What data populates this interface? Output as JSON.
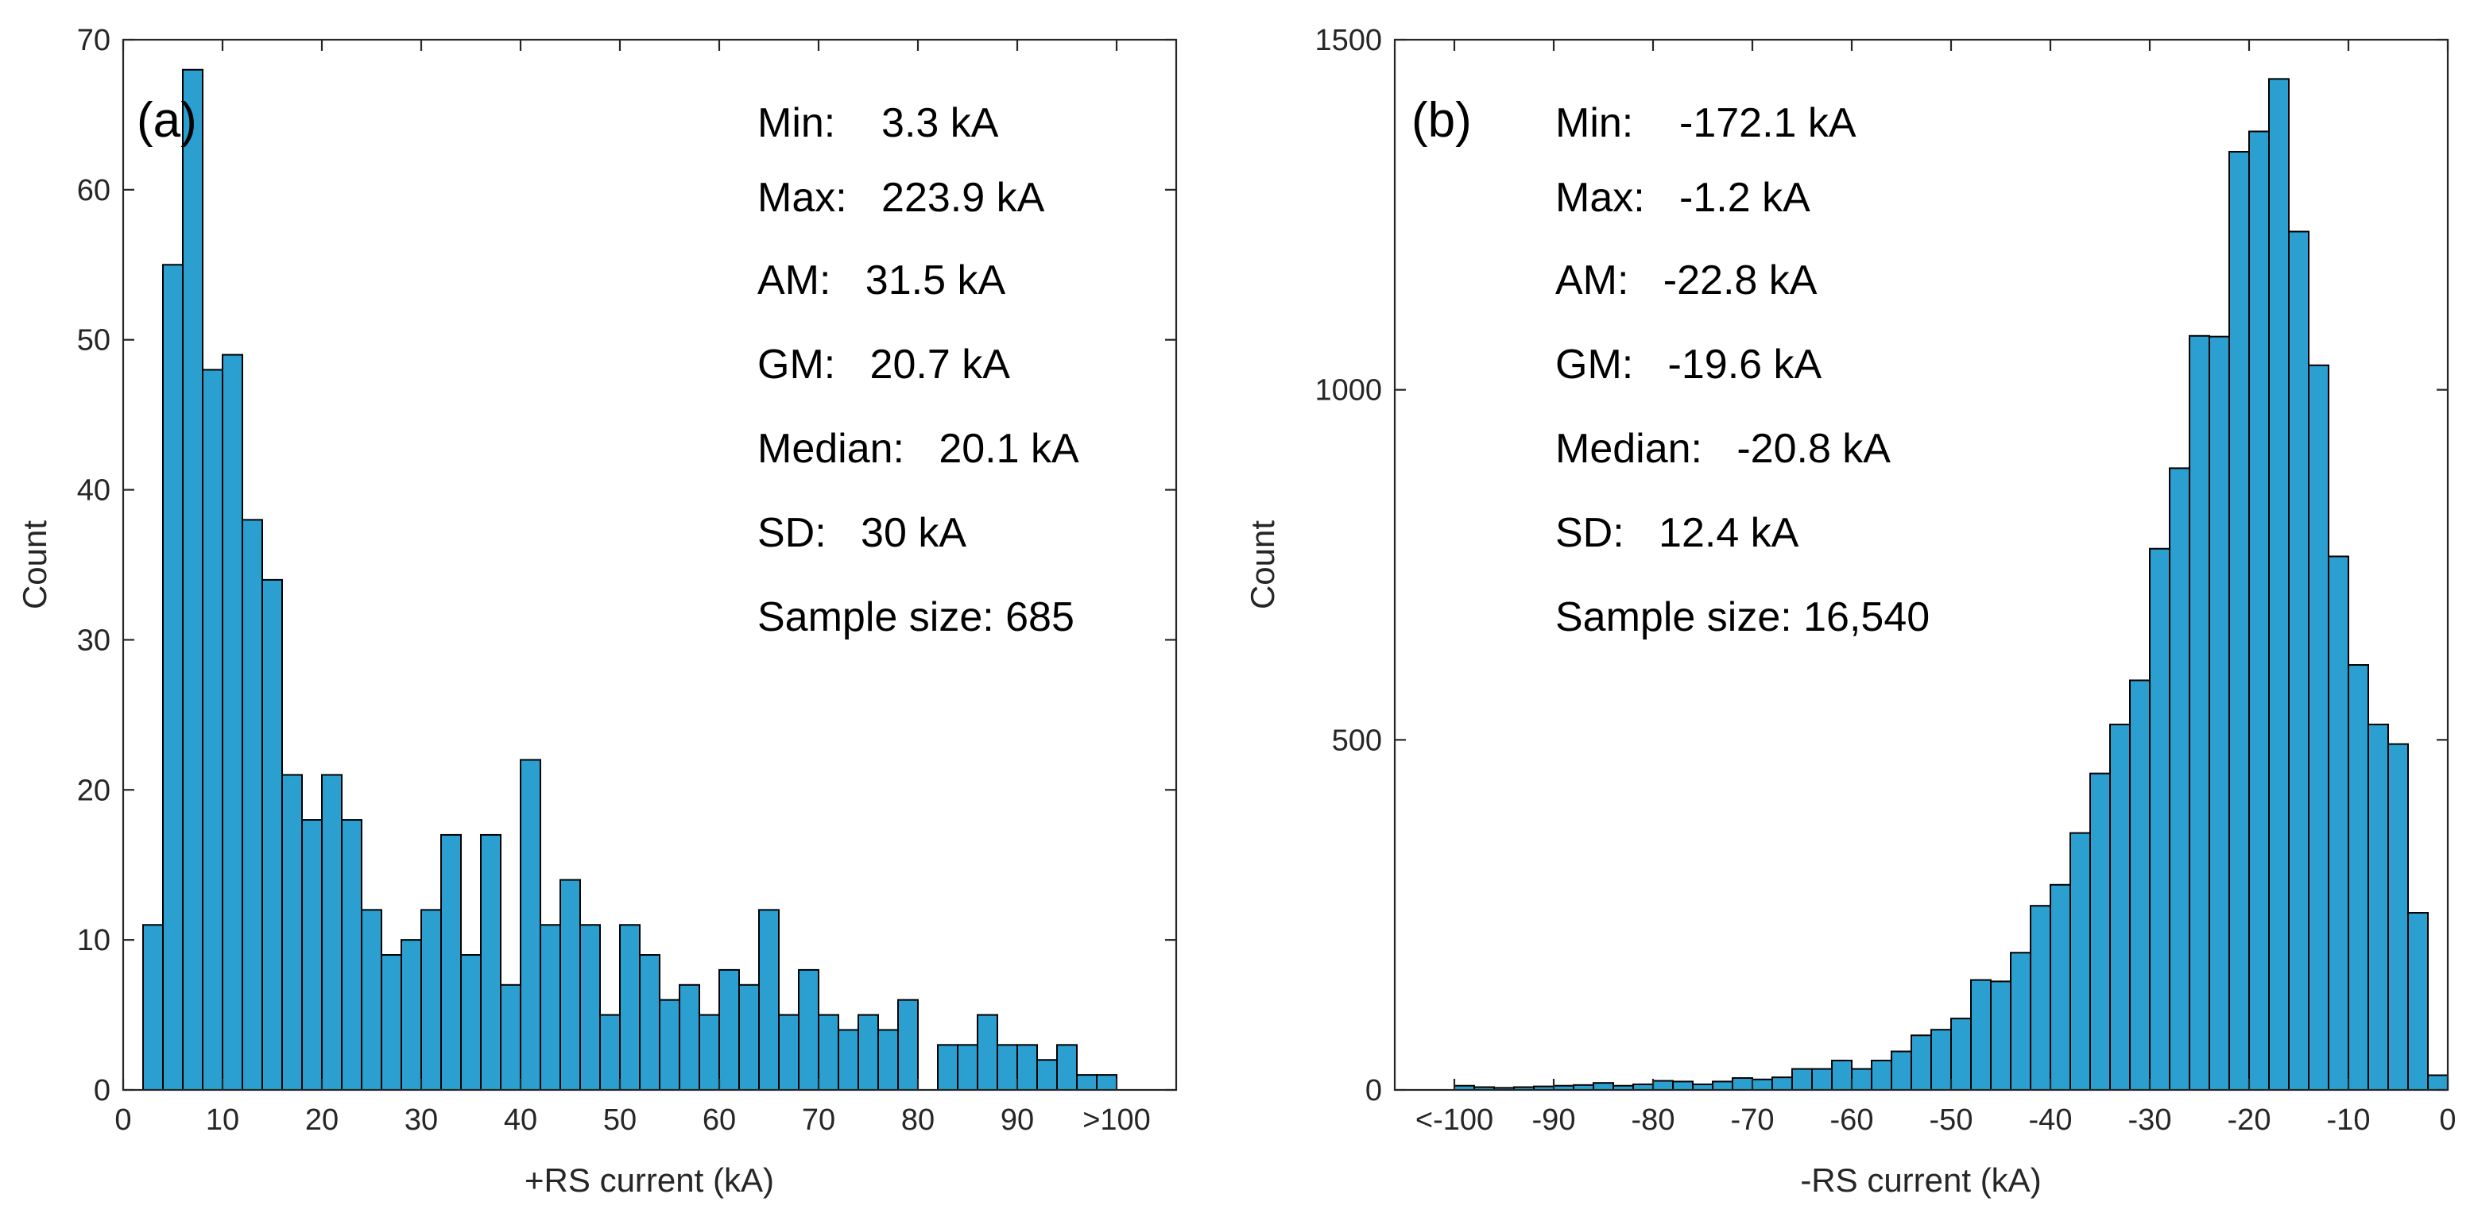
{
  "chart_data": [
    {
      "type": "bar",
      "panel_label": "(a)",
      "xlabel": "+RS current (kA)",
      "ylabel": "Count",
      "xlim": [
        0,
        106
      ],
      "ylim": [
        0,
        70
      ],
      "bin_width": 2,
      "x_ticks": [
        {
          "value": 0,
          "label": "0"
        },
        {
          "value": 10,
          "label": "10"
        },
        {
          "value": 20,
          "label": "20"
        },
        {
          "value": 30,
          "label": "30"
        },
        {
          "value": 40,
          "label": "40"
        },
        {
          "value": 50,
          "label": "50"
        },
        {
          "value": 60,
          "label": "60"
        },
        {
          "value": 70,
          "label": "70"
        },
        {
          "value": 80,
          "label": "80"
        },
        {
          "value": 90,
          "label": "90"
        },
        {
          "value": 100,
          "label": ">100"
        }
      ],
      "y_ticks": [
        {
          "value": 0,
          "label": "0"
        },
        {
          "value": 10,
          "label": "10"
        },
        {
          "value": 20,
          "label": "20"
        },
        {
          "value": 30,
          "label": "30"
        },
        {
          "value": 40,
          "label": "40"
        },
        {
          "value": 50,
          "label": "50"
        },
        {
          "value": 60,
          "label": "60"
        },
        {
          "value": 70,
          "label": "70"
        }
      ],
      "bins": [
        {
          "x0": 2,
          "x1": 4,
          "count": 11
        },
        {
          "x0": 4,
          "x1": 6,
          "count": 55
        },
        {
          "x0": 6,
          "x1": 8,
          "count": 68
        },
        {
          "x0": 8,
          "x1": 10,
          "count": 48
        },
        {
          "x0": 10,
          "x1": 12,
          "count": 49
        },
        {
          "x0": 12,
          "x1": 14,
          "count": 38
        },
        {
          "x0": 14,
          "x1": 16,
          "count": 34
        },
        {
          "x0": 16,
          "x1": 18,
          "count": 21
        },
        {
          "x0": 18,
          "x1": 20,
          "count": 18
        },
        {
          "x0": 20,
          "x1": 22,
          "count": 21
        },
        {
          "x0": 22,
          "x1": 24,
          "count": 18
        },
        {
          "x0": 24,
          "x1": 26,
          "count": 12
        },
        {
          "x0": 26,
          "x1": 28,
          "count": 9
        },
        {
          "x0": 28,
          "x1": 30,
          "count": 10
        },
        {
          "x0": 30,
          "x1": 32,
          "count": 12
        },
        {
          "x0": 32,
          "x1": 34,
          "count": 17
        },
        {
          "x0": 34,
          "x1": 36,
          "count": 9
        },
        {
          "x0": 36,
          "x1": 38,
          "count": 17
        },
        {
          "x0": 38,
          "x1": 40,
          "count": 7
        },
        {
          "x0": 40,
          "x1": 42,
          "count": 22
        },
        {
          "x0": 42,
          "x1": 44,
          "count": 11
        },
        {
          "x0": 44,
          "x1": 46,
          "count": 14
        },
        {
          "x0": 46,
          "x1": 48,
          "count": 11
        },
        {
          "x0": 48,
          "x1": 50,
          "count": 5
        },
        {
          "x0": 50,
          "x1": 52,
          "count": 11
        },
        {
          "x0": 52,
          "x1": 54,
          "count": 9
        },
        {
          "x0": 54,
          "x1": 56,
          "count": 6
        },
        {
          "x0": 56,
          "x1": 58,
          "count": 7
        },
        {
          "x0": 58,
          "x1": 60,
          "count": 5
        },
        {
          "x0": 60,
          "x1": 62,
          "count": 8
        },
        {
          "x0": 62,
          "x1": 64,
          "count": 7
        },
        {
          "x0": 64,
          "x1": 66,
          "count": 12
        },
        {
          "x0": 66,
          "x1": 68,
          "count": 5
        },
        {
          "x0": 68,
          "x1": 70,
          "count": 8
        },
        {
          "x0": 70,
          "x1": 72,
          "count": 5
        },
        {
          "x0": 72,
          "x1": 74,
          "count": 4
        },
        {
          "x0": 74,
          "x1": 76,
          "count": 5
        },
        {
          "x0": 76,
          "x1": 78,
          "count": 4
        },
        {
          "x0": 78,
          "x1": 80,
          "count": 6
        },
        {
          "x0": 82,
          "x1": 84,
          "count": 3
        },
        {
          "x0": 84,
          "x1": 86,
          "count": 3
        },
        {
          "x0": 86,
          "x1": 88,
          "count": 5
        },
        {
          "x0": 88,
          "x1": 90,
          "count": 3
        },
        {
          "x0": 90,
          "x1": 92,
          "count": 3
        },
        {
          "x0": 92,
          "x1": 94,
          "count": 2
        },
        {
          "x0": 94,
          "x1": 96,
          "count": 3
        },
        {
          "x0": 96,
          "x1": 98,
          "count": 1
        },
        {
          "x0": 98,
          "x1": 100,
          "count": 1
        }
      ],
      "stats": {
        "min": "Min:    3.3 kA",
        "max": "Max:   223.9 kA",
        "am": "AM:   31.5 kA",
        "gm": "GM:   20.7 kA",
        "median": "Median:   20.1 kA",
        "sd": "SD:   30 kA",
        "sample_size": "Sample size: 685"
      },
      "bar_color": "#2a9fd0"
    },
    {
      "type": "bar",
      "panel_label": "(b)",
      "xlabel": "-RS current (kA)",
      "ylabel": "Count",
      "xlim": [
        -106,
        0
      ],
      "ylim": [
        0,
        1500
      ],
      "bin_width": 2,
      "x_ticks": [
        {
          "value": -100,
          "label": "<-100"
        },
        {
          "value": -90,
          "label": "-90"
        },
        {
          "value": -80,
          "label": "-80"
        },
        {
          "value": -70,
          "label": "-70"
        },
        {
          "value": -60,
          "label": "-60"
        },
        {
          "value": -50,
          "label": "-50"
        },
        {
          "value": -40,
          "label": "-40"
        },
        {
          "value": -30,
          "label": "-30"
        },
        {
          "value": -20,
          "label": "-20"
        },
        {
          "value": -10,
          "label": "-10"
        },
        {
          "value": 0,
          "label": "0"
        }
      ],
      "y_ticks": [
        {
          "value": 0,
          "label": "0"
        },
        {
          "value": 500,
          "label": "500"
        },
        {
          "value": 1000,
          "label": "1000"
        },
        {
          "value": 1500,
          "label": "1500"
        }
      ],
      "bins": [
        {
          "x0": -100,
          "x1": -98,
          "count": 6
        },
        {
          "x0": -98,
          "x1": -96,
          "count": 4
        },
        {
          "x0": -96,
          "x1": -94,
          "count": 3
        },
        {
          "x0": -94,
          "x1": -92,
          "count": 4
        },
        {
          "x0": -92,
          "x1": -90,
          "count": 5
        },
        {
          "x0": -90,
          "x1": -88,
          "count": 6
        },
        {
          "x0": -88,
          "x1": -86,
          "count": 7
        },
        {
          "x0": -86,
          "x1": -84,
          "count": 10
        },
        {
          "x0": -84,
          "x1": -82,
          "count": 6
        },
        {
          "x0": -82,
          "x1": -80,
          "count": 8
        },
        {
          "x0": -80,
          "x1": -78,
          "count": 13
        },
        {
          "x0": -78,
          "x1": -76,
          "count": 12
        },
        {
          "x0": -76,
          "x1": -74,
          "count": 8
        },
        {
          "x0": -74,
          "x1": -72,
          "count": 12
        },
        {
          "x0": -72,
          "x1": -70,
          "count": 17
        },
        {
          "x0": -70,
          "x1": -68,
          "count": 15
        },
        {
          "x0": -68,
          "x1": -66,
          "count": 18
        },
        {
          "x0": -66,
          "x1": -64,
          "count": 30
        },
        {
          "x0": -64,
          "x1": -62,
          "count": 30
        },
        {
          "x0": -62,
          "x1": -60,
          "count": 42
        },
        {
          "x0": -60,
          "x1": -58,
          "count": 30
        },
        {
          "x0": -58,
          "x1": -56,
          "count": 42
        },
        {
          "x0": -56,
          "x1": -54,
          "count": 55
        },
        {
          "x0": -54,
          "x1": -52,
          "count": 78
        },
        {
          "x0": -52,
          "x1": -50,
          "count": 86
        },
        {
          "x0": -50,
          "x1": -48,
          "count": 102
        },
        {
          "x0": -48,
          "x1": -46,
          "count": 157
        },
        {
          "x0": -46,
          "x1": -44,
          "count": 155
        },
        {
          "x0": -44,
          "x1": -42,
          "count": 196
        },
        {
          "x0": -42,
          "x1": -40,
          "count": 263
        },
        {
          "x0": -40,
          "x1": -38,
          "count": 293
        },
        {
          "x0": -38,
          "x1": -36,
          "count": 367
        },
        {
          "x0": -36,
          "x1": -34,
          "count": 452
        },
        {
          "x0": -34,
          "x1": -32,
          "count": 522
        },
        {
          "x0": -32,
          "x1": -30,
          "count": 585
        },
        {
          "x0": -30,
          "x1": -28,
          "count": 773
        },
        {
          "x0": -28,
          "x1": -26,
          "count": 888
        },
        {
          "x0": -26,
          "x1": -24,
          "count": 1077
        },
        {
          "x0": -24,
          "x1": -22,
          "count": 1076
        },
        {
          "x0": -22,
          "x1": -20,
          "count": 1340
        },
        {
          "x0": -20,
          "x1": -18,
          "count": 1369
        },
        {
          "x0": -18,
          "x1": -16,
          "count": 1444
        },
        {
          "x0": -16,
          "x1": -14,
          "count": 1226
        },
        {
          "x0": -14,
          "x1": -12,
          "count": 1035
        },
        {
          "x0": -12,
          "x1": -10,
          "count": 762
        },
        {
          "x0": -10,
          "x1": -8,
          "count": 607
        },
        {
          "x0": -8,
          "x1": -6,
          "count": 522
        },
        {
          "x0": -6,
          "x1": -4,
          "count": 494
        },
        {
          "x0": -4,
          "x1": -2,
          "count": 253
        },
        {
          "x0": -2,
          "x1": 0,
          "count": 21
        }
      ],
      "stats": {
        "min": "Min:    -172.1 kA",
        "max": "Max:   -1.2 kA",
        "am": "AM:   -22.8 kA",
        "gm": "GM:   -19.6 kA",
        "median": "Median:   -20.8 kA",
        "sd": "SD:   12.4 kA",
        "sample_size": "Sample size: 16,540"
      },
      "bar_color": "#2a9fd0"
    }
  ]
}
